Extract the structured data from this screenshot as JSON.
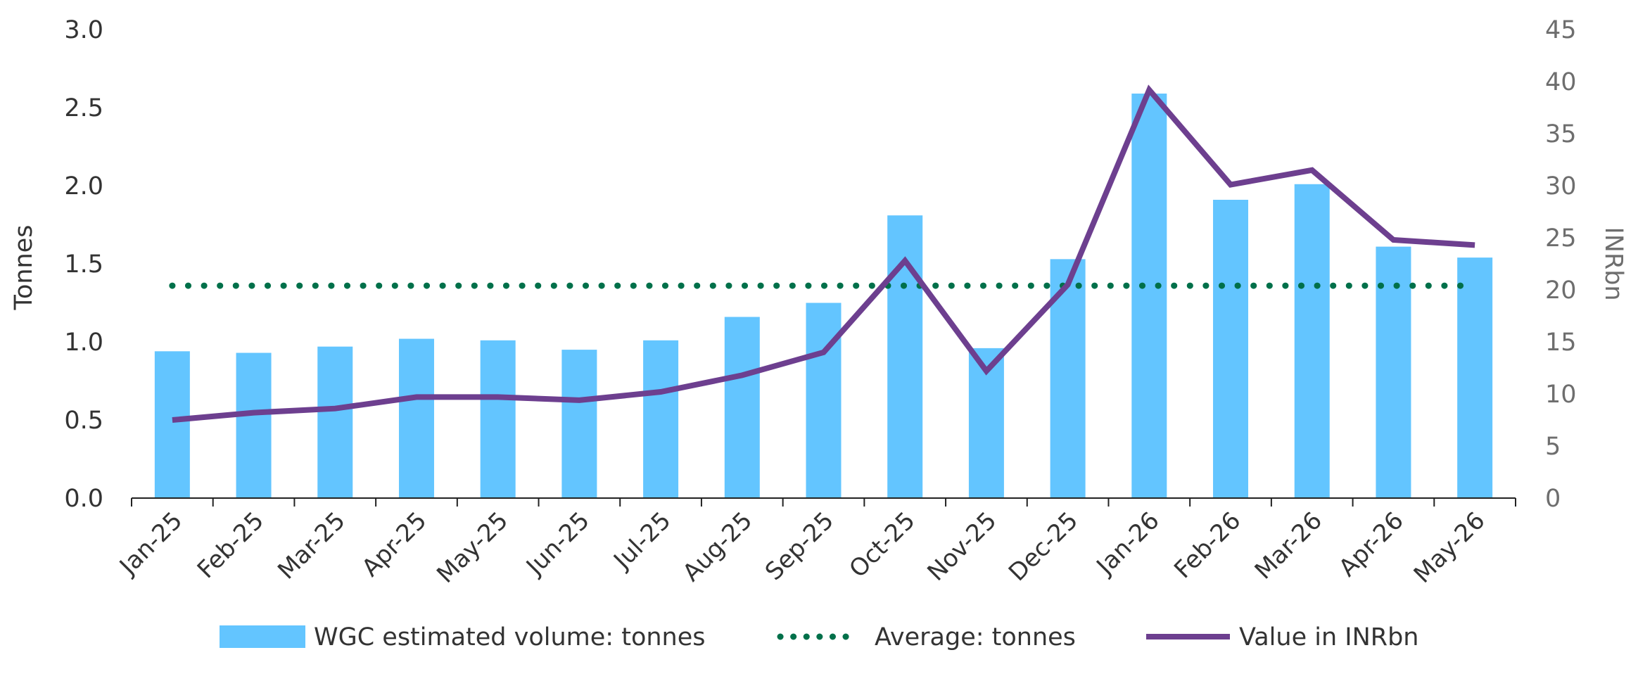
{
  "chart_data": {
    "type": "bar",
    "categories": [
      "Jan-25",
      "Feb-25",
      "Mar-25",
      "Apr-25",
      "May-25",
      "Jun-25",
      "Jul-25",
      "Aug-25",
      "Sep-25",
      "Oct-25",
      "Nov-25",
      "Dec-25",
      "Jan-26",
      "Feb-26",
      "Mar-26",
      "Apr-26",
      "May-26"
    ],
    "series": [
      {
        "name": "WGC estimated volume: tonnes",
        "type": "bar",
        "axis": "left",
        "color": "#63C5FF",
        "values": [
          0.94,
          0.93,
          0.97,
          1.02,
          1.01,
          0.95,
          1.01,
          1.16,
          1.25,
          1.81,
          0.96,
          1.53,
          2.59,
          1.91,
          2.01,
          1.61,
          1.54
        ]
      },
      {
        "name": "Average: tonnes",
        "type": "line-dotted",
        "axis": "left",
        "color": "#00704A",
        "values": [
          1.36,
          1.36,
          1.36,
          1.36,
          1.36,
          1.36,
          1.36,
          1.36,
          1.36,
          1.36,
          1.36,
          1.36,
          1.36,
          1.36,
          1.36,
          1.36,
          1.36
        ]
      },
      {
        "name": "Value in INRbn",
        "type": "line",
        "axis": "right",
        "color": "#6D3F8F",
        "values": [
          7.5,
          8.2,
          8.6,
          9.7,
          9.7,
          9.4,
          10.2,
          11.8,
          14.0,
          22.8,
          12.2,
          20.5,
          39.2,
          30.1,
          31.5,
          24.8,
          24.3
        ]
      }
    ],
    "ylabel": "Tonnes",
    "y2label": "INRbn",
    "ylim": [
      0,
      3.0
    ],
    "y2lim": [
      0,
      45
    ],
    "yticks": [
      "0.0",
      "0.5",
      "1.0",
      "1.5",
      "2.0",
      "2.5",
      "3.0"
    ],
    "y2ticks": [
      "0",
      "5",
      "10",
      "15",
      "20",
      "25",
      "30",
      "35",
      "40",
      "45"
    ],
    "grid": false,
    "legend": "bottom"
  }
}
